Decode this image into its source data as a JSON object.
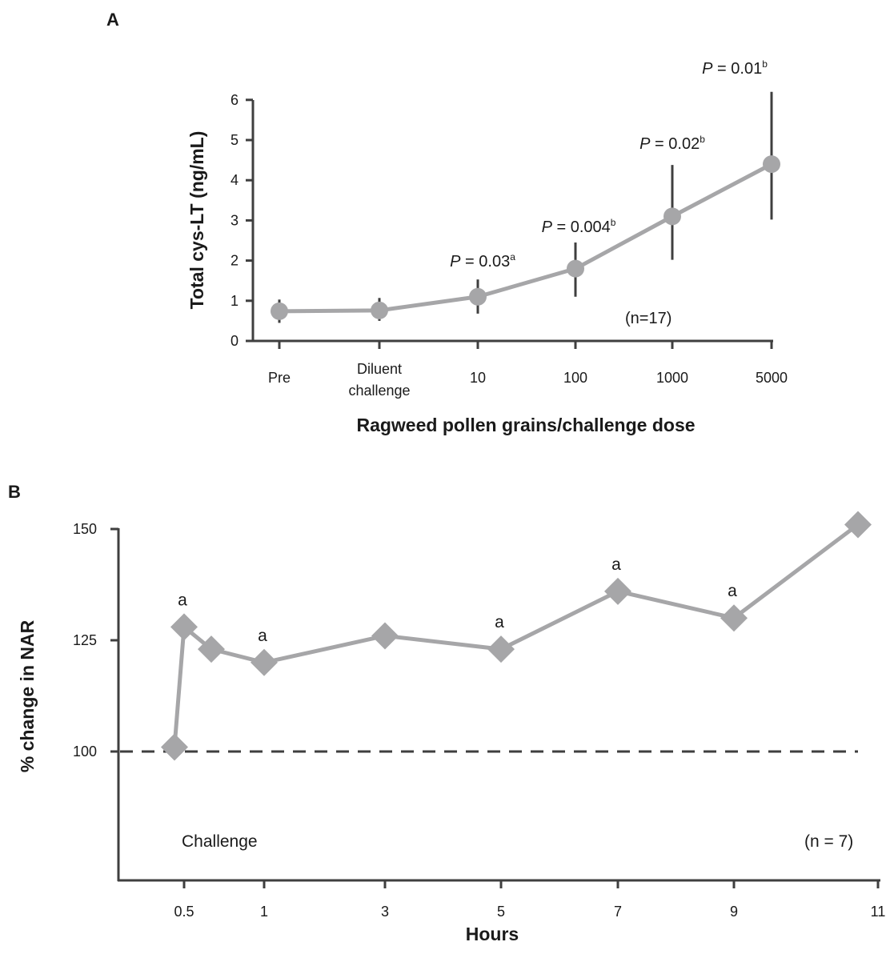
{
  "chart_data": [
    {
      "panel": "A",
      "type": "line",
      "title": "",
      "xlabel": "Ragweed pollen grains/challenge dose",
      "ylabel": "Total cys-LT (ng/mL)",
      "categories": [
        [
          "Pre"
        ],
        [
          "Diluent",
          "challenge"
        ],
        [
          "10"
        ],
        [
          "100"
        ],
        [
          "1000"
        ],
        [
          "5000"
        ]
      ],
      "ylim": [
        0,
        6
      ],
      "yticks": [
        0,
        1,
        2,
        3,
        4,
        5,
        6
      ],
      "grid": false,
      "series": [
        {
          "values": [
            0.74,
            0.76,
            1.1,
            1.8,
            3.1,
            4.4
          ],
          "err_low": [
            0.45,
            0.5,
            0.68,
            1.1,
            2.02,
            3.02
          ],
          "err_high": [
            1.03,
            1.07,
            1.53,
            2.45,
            4.38,
            6.2
          ]
        }
      ],
      "point_labels": [
        {
          "index": 2,
          "prefix": "P",
          "text": " = 0.03",
          "sup": "a"
        },
        {
          "index": 3,
          "prefix": "P",
          "text": " = 0.004",
          "sup": "b"
        },
        {
          "index": 4,
          "prefix": "P",
          "text": " = 0.02",
          "sup": "b"
        },
        {
          "index": 5,
          "prefix": "P",
          "text": " = 0.01",
          "sup": "b"
        }
      ],
      "n_label": "(n=17)"
    },
    {
      "panel": "B",
      "type": "line",
      "title": "",
      "xlabel": "Hours",
      "ylabel": "% change in NAR",
      "xticks": [
        "0.5",
        "1",
        "3",
        "5",
        "7",
        "9",
        "11"
      ],
      "yticks": [
        "100",
        "125",
        "150"
      ],
      "grid": false,
      "reference_line": 100,
      "series": [
        {
          "x": [
            0.45,
            0.5,
            0.75,
            1,
            3,
            5,
            7,
            9,
            11
          ],
          "values": [
            101,
            128,
            123,
            120,
            126,
            123,
            136,
            130,
            151
          ],
          "marker": "diamond"
        }
      ],
      "point_labels": [
        {
          "index": 1,
          "text": "a"
        },
        {
          "index": 3,
          "text": "a"
        },
        {
          "index": 5,
          "text": "a"
        },
        {
          "index": 6,
          "text": "a"
        },
        {
          "index": 7,
          "text": "a"
        }
      ],
      "challenge_label": "Challenge",
      "n_label": "(n = 7)"
    }
  ]
}
